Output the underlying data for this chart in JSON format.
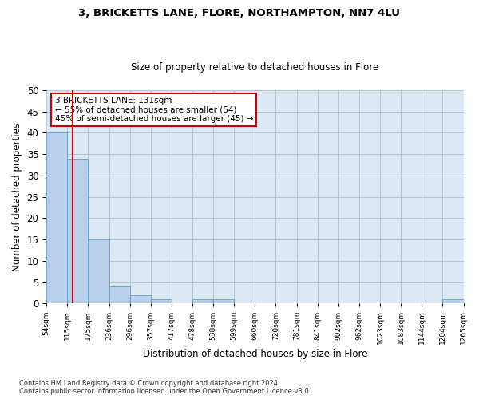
{
  "title": "3, BRICKETTS LANE, FLORE, NORTHAMPTON, NN7 4LU",
  "subtitle": "Size of property relative to detached houses in Flore",
  "xlabel": "Distribution of detached houses by size in Flore",
  "ylabel": "Number of detached properties",
  "bar_values": [
    40,
    34,
    15,
    4,
    2,
    1,
    0,
    1,
    1,
    0,
    0,
    0,
    0,
    0,
    0,
    0,
    0,
    0,
    0,
    1
  ],
  "x_labels": [
    "54sqm",
    "115sqm",
    "175sqm",
    "236sqm",
    "296sqm",
    "357sqm",
    "417sqm",
    "478sqm",
    "538sqm",
    "599sqm",
    "660sqm",
    "720sqm",
    "781sqm",
    "841sqm",
    "902sqm",
    "962sqm",
    "1023sqm",
    "1083sqm",
    "1144sqm",
    "1204sqm",
    "1265sqm"
  ],
  "bar_color": "#b8d0ea",
  "bar_edge_color": "#6aaad4",
  "property_line_color": "#cc0000",
  "property_line_x": 131,
  "annotation_text": "3 BRICKETTS LANE: 131sqm\n← 55% of detached houses are smaller (54)\n45% of semi-detached houses are larger (45) →",
  "annotation_box_color": "#ffffff",
  "annotation_box_edgecolor": "#cc0000",
  "ylim": [
    0,
    50
  ],
  "yticks": [
    0,
    5,
    10,
    15,
    20,
    25,
    30,
    35,
    40,
    45,
    50
  ],
  "background_color": "#dde8f5",
  "footer_text": "Contains HM Land Registry data © Crown copyright and database right 2024.\nContains public sector information licensed under the Open Government Licence v3.0.",
  "bin_edges": [
    54,
    115,
    175,
    236,
    296,
    357,
    417,
    478,
    538,
    599,
    660,
    720,
    781,
    841,
    902,
    962,
    1023,
    1083,
    1144,
    1204,
    1265
  ],
  "bin_width": 61
}
